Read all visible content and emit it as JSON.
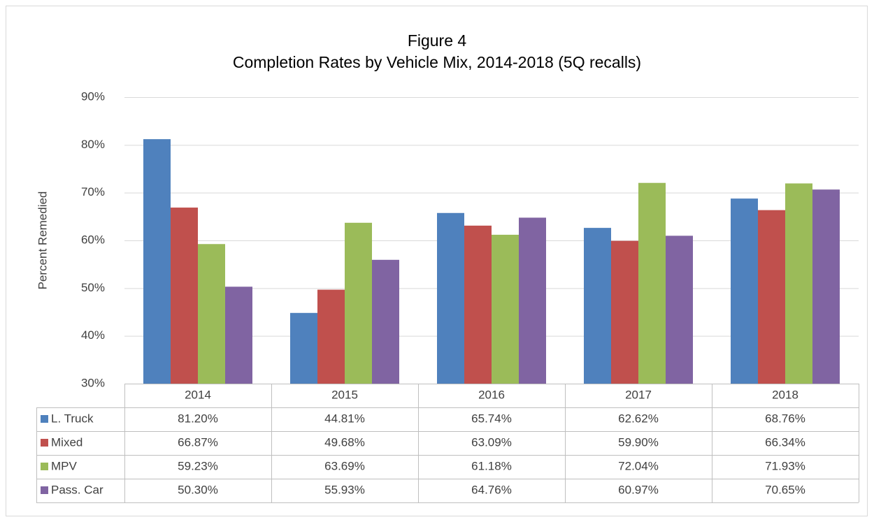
{
  "chart_data": {
    "type": "bar",
    "title": "Figure 4",
    "subtitle": "Completion Rates by Vehicle Mix, 2014-2018 (5Q recalls)",
    "y_label": "Percent Remedied",
    "categories": [
      "2014",
      "2015",
      "2016",
      "2017",
      "2018"
    ],
    "series": [
      {
        "name": "L. Truck",
        "color": "#4f81bd",
        "values": [
          81.2,
          44.81,
          65.74,
          62.62,
          68.76
        ],
        "value_labels": [
          "81.20%",
          "44.81%",
          "65.74%",
          "62.62%",
          "68.76%"
        ]
      },
      {
        "name": "Mixed",
        "color": "#c0504d",
        "values": [
          66.87,
          49.68,
          63.09,
          59.9,
          66.34
        ],
        "value_labels": [
          "66.87%",
          "49.68%",
          "63.09%",
          "59.90%",
          "66.34%"
        ]
      },
      {
        "name": "MPV",
        "color": "#9bbb59",
        "values": [
          59.23,
          63.69,
          61.18,
          72.04,
          71.93
        ],
        "value_labels": [
          "59.23%",
          "63.69%",
          "61.18%",
          "72.04%",
          "71.93%"
        ]
      },
      {
        "name": "Pass. Car",
        "color": "#8064a2",
        "values": [
          50.3,
          55.93,
          64.76,
          60.97,
          70.65
        ],
        "value_labels": [
          "50.30%",
          "55.93%",
          "64.76%",
          "60.97%",
          "70.65%"
        ]
      }
    ],
    "ylim": [
      30,
      90
    ],
    "yticks": [
      {
        "value": 30,
        "label": "30%"
      },
      {
        "value": 40,
        "label": "40%"
      },
      {
        "value": 50,
        "label": "50%"
      },
      {
        "value": 60,
        "label": "60%"
      },
      {
        "value": 70,
        "label": "70%"
      },
      {
        "value": 80,
        "label": "80%"
      },
      {
        "value": 90,
        "label": "90%"
      }
    ],
    "grid": true
  }
}
